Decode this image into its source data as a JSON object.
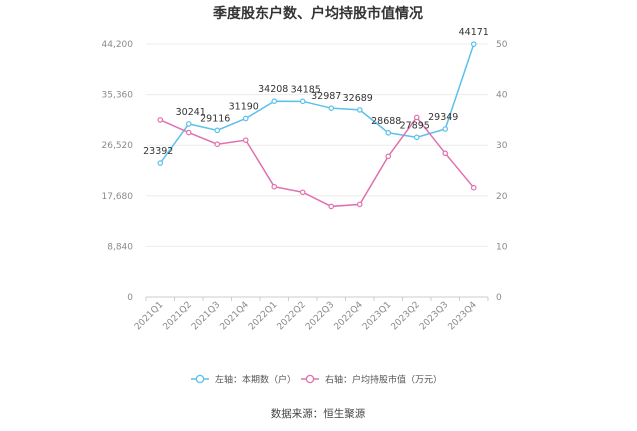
{
  "chart_data": {
    "type": "line",
    "title": "季度股东户数、户均持股市值情况",
    "categories": [
      "2021Q1",
      "2021Q2",
      "2021Q3",
      "2021Q4",
      "2022Q1",
      "2022Q2",
      "2022Q3",
      "2022Q4",
      "2023Q1",
      "2023Q2",
      "2023Q3",
      "2023Q4"
    ],
    "left_axis": {
      "ticks": [
        "0",
        "8,840",
        "17,680",
        "26,520",
        "35,360",
        "44,200"
      ],
      "ylim": [
        0,
        44200
      ]
    },
    "right_axis": {
      "ticks": [
        "0",
        "10",
        "20",
        "30",
        "40",
        "50"
      ],
      "ylim": [
        0,
        50
      ]
    },
    "series": [
      {
        "name": "左轴：本期数（户）",
        "axis": "left",
        "color": "#5bc0eb",
        "values": [
          23392,
          30241,
          29116,
          31190,
          34208,
          34185,
          32987,
          32689,
          28688,
          27895,
          29349,
          44171
        ],
        "labels": [
          "23392",
          "30241",
          "29116",
          "31190",
          "34208",
          "34185",
          "32987",
          "32689",
          "28688",
          "27895",
          "29349",
          "44171"
        ]
      },
      {
        "name": "右轴：户均持股市值（万元）",
        "axis": "right",
        "color": "#e070b0",
        "values": [
          35.0,
          32.5,
          30.2,
          31.0,
          21.8,
          20.7,
          17.9,
          18.3,
          27.8,
          35.5,
          28.4,
          21.6
        ]
      }
    ],
    "legend_position": "bottom",
    "grid": true
  },
  "source": "数据来源：恒生聚源"
}
